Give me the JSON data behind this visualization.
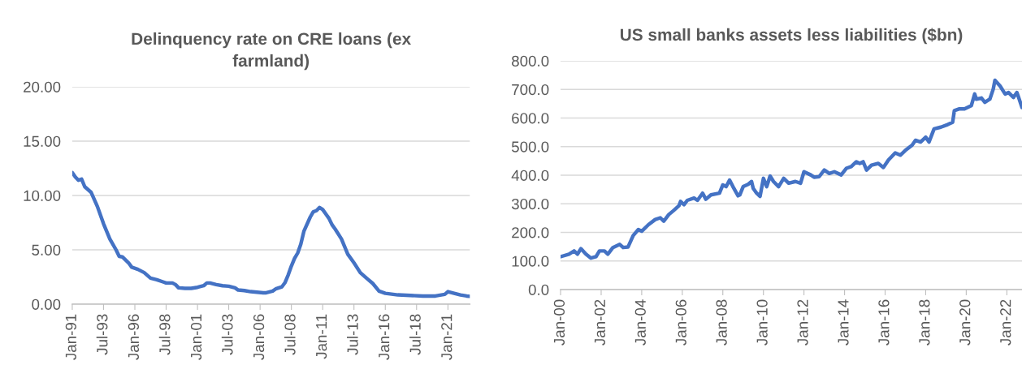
{
  "chart_data": [
    {
      "type": "line",
      "title": "Delinquency rate on CRE loans (ex farmland)",
      "x": [
        "1991-01",
        "1991-04",
        "1991-07",
        "1991-10",
        "1992-01",
        "1992-07",
        "1993-01",
        "1993-07",
        "1994-01",
        "1994-07",
        "1994-10",
        "1995-01",
        "1995-07",
        "1995-10",
        "1996-04",
        "1996-10",
        "1997-04",
        "1997-10",
        "1998-04",
        "1998-07",
        "1999-01",
        "1999-04",
        "1999-07",
        "2000-01",
        "2000-07",
        "2001-01",
        "2001-07",
        "2001-10",
        "2002-01",
        "2002-07",
        "2003-01",
        "2003-07",
        "2004-01",
        "2004-04",
        "2004-10",
        "2005-04",
        "2005-10",
        "2006-04",
        "2006-07",
        "2007-01",
        "2007-04",
        "2007-10",
        "2008-01",
        "2008-04",
        "2008-07",
        "2008-10",
        "2009-01",
        "2009-04",
        "2009-07",
        "2010-01",
        "2010-04",
        "2010-07",
        "2010-10",
        "2011-01",
        "2011-04",
        "2011-07",
        "2011-10",
        "2012-01",
        "2012-07",
        "2013-01",
        "2013-07",
        "2014-01",
        "2014-07",
        "2015-01",
        "2015-07",
        "2016-01",
        "2017-01",
        "2018-01",
        "2019-01",
        "2020-01",
        "2020-10",
        "2021-01",
        "2021-07",
        "2022-01",
        "2022-07",
        "2022-10"
      ],
      "series": [
        {
          "color": "#4472c4",
          "values": [
            12.1,
            11.7,
            11.4,
            11.5,
            10.8,
            10.3,
            9.0,
            7.4,
            6.0,
            5.0,
            4.4,
            4.35,
            3.8,
            3.4,
            3.2,
            2.9,
            2.4,
            2.25,
            2.05,
            1.95,
            1.95,
            1.8,
            1.5,
            1.45,
            1.45,
            1.55,
            1.7,
            1.95,
            1.95,
            1.8,
            1.7,
            1.65,
            1.5,
            1.3,
            1.25,
            1.15,
            1.1,
            1.05,
            1.05,
            1.2,
            1.4,
            1.6,
            2.0,
            2.7,
            3.5,
            4.2,
            4.7,
            5.5,
            6.7,
            8.0,
            8.5,
            8.6,
            8.9,
            8.7,
            8.3,
            7.9,
            7.3,
            6.9,
            6.0,
            4.6,
            3.8,
            2.9,
            2.4,
            1.9,
            1.2,
            1.0,
            0.85,
            0.8,
            0.75,
            0.75,
            0.9,
            1.15,
            1.0,
            0.85,
            0.75,
            0.72
          ]
        }
      ],
      "xlim": [
        "1991-01",
        "2022-10"
      ],
      "xticks": [
        {
          "value": "1991-01",
          "label": "Jan-91"
        },
        {
          "value": "1993-07",
          "label": "Jul-93"
        },
        {
          "value": "1996-01",
          "label": "Jan-96"
        },
        {
          "value": "1998-07",
          "label": "Jul-98"
        },
        {
          "value": "2001-01",
          "label": "Jan-01"
        },
        {
          "value": "2003-07",
          "label": "Jul-03"
        },
        {
          "value": "2006-01",
          "label": "Jan-06"
        },
        {
          "value": "2008-07",
          "label": "Jul-08"
        },
        {
          "value": "2011-01",
          "label": "Jan-11"
        },
        {
          "value": "2013-07",
          "label": "Jul-13"
        },
        {
          "value": "2016-01",
          "label": "Jan-16"
        },
        {
          "value": "2018-07",
          "label": "Jul-18"
        },
        {
          "value": "2021-01",
          "label": "Jan-21"
        }
      ],
      "ylim": [
        0,
        20
      ],
      "yticks": [
        {
          "value": 0,
          "label": "0.00"
        },
        {
          "value": 5,
          "label": "5.00"
        },
        {
          "value": 10,
          "label": "10.00"
        },
        {
          "value": 15,
          "label": "15.00"
        },
        {
          "value": 20,
          "label": "20.00"
        }
      ],
      "grid": "y",
      "marker": "none",
      "line_style": "solid"
    },
    {
      "type": "line",
      "title": "US small banks assets less liabilities ($bn)",
      "x": [
        "2000-01",
        "2000-06",
        "2000-09",
        "2000-11",
        "2001-01",
        "2001-04",
        "2001-07",
        "2001-10",
        "2001-12",
        "2002-03",
        "2002-05",
        "2002-08",
        "2002-12",
        "2003-02",
        "2003-05",
        "2003-08",
        "2003-11",
        "2004-01",
        "2004-05",
        "2004-09",
        "2004-12",
        "2005-02",
        "2005-05",
        "2005-08",
        "2005-11",
        "2005-12",
        "2006-02",
        "2006-04",
        "2006-08",
        "2006-10",
        "2007-01",
        "2007-03",
        "2007-06",
        "2007-11",
        "2008-01",
        "2008-03",
        "2008-05",
        "2008-07",
        "2008-10",
        "2008-11",
        "2009-01",
        "2009-04",
        "2009-06",
        "2009-07",
        "2009-09",
        "2009-11",
        "2010-01",
        "2010-03",
        "2010-05",
        "2010-07",
        "2010-10",
        "2011-01",
        "2011-04",
        "2011-08",
        "2011-11",
        "2012-01",
        "2012-05",
        "2012-07",
        "2012-10",
        "2013-01",
        "2013-04",
        "2013-07",
        "2013-11",
        "2014-02",
        "2014-05",
        "2014-08",
        "2014-10",
        "2014-12",
        "2015-02",
        "2015-05",
        "2015-09",
        "2015-12",
        "2016-03",
        "2016-07",
        "2016-10",
        "2017-01",
        "2017-05",
        "2017-07",
        "2017-10",
        "2018-01",
        "2018-03",
        "2018-06",
        "2018-10",
        "2019-02",
        "2019-05",
        "2019-06",
        "2019-09",
        "2019-12",
        "2020-04",
        "2020-06",
        "2020-07",
        "2020-10",
        "2020-12",
        "2021-03",
        "2021-05",
        "2021-06",
        "2021-09",
        "2021-12",
        "2022-02",
        "2022-05",
        "2022-07",
        "2022-08",
        "2022-10"
      ],
      "series": [
        {
          "color": "#4472c4",
          "values": [
            115,
            124,
            135,
            124,
            143,
            124,
            110,
            115,
            135,
            135,
            124,
            147,
            158,
            147,
            149,
            189,
            210,
            204,
            227,
            245,
            251,
            239,
            262,
            277,
            293,
            308,
            297,
            312,
            320,
            312,
            337,
            316,
            331,
            337,
            366,
            360,
            383,
            360,
            328,
            331,
            360,
            368,
            378,
            354,
            337,
            326,
            389,
            360,
            397,
            378,
            360,
            389,
            372,
            378,
            372,
            412,
            401,
            393,
            395,
            418,
            406,
            412,
            401,
            424,
            430,
            447,
            441,
            447,
            418,
            435,
            441,
            427,
            453,
            478,
            470,
            487,
            505,
            522,
            516,
            533,
            516,
            562,
            568,
            577,
            585,
            626,
            632,
            632,
            643,
            684,
            666,
            670,
            655,
            666,
            701,
            732,
            712,
            684,
            689,
            672,
            689,
            672,
            637
          ]
        }
      ],
      "xlim": [
        "2000-01",
        "2022-10"
      ],
      "xticks": [
        {
          "value": "2000-01",
          "label": "Jan-00"
        },
        {
          "value": "2002-01",
          "label": "Jan-02"
        },
        {
          "value": "2004-01",
          "label": "Jan-04"
        },
        {
          "value": "2006-01",
          "label": "Jan-06"
        },
        {
          "value": "2008-01",
          "label": "Jan-08"
        },
        {
          "value": "2010-01",
          "label": "Jan-10"
        },
        {
          "value": "2012-01",
          "label": "Jan-12"
        },
        {
          "value": "2014-01",
          "label": "Jan-14"
        },
        {
          "value": "2016-01",
          "label": "Jan-16"
        },
        {
          "value": "2018-01",
          "label": "Jan-18"
        },
        {
          "value": "2020-01",
          "label": "Jan-20"
        },
        {
          "value": "2022-01",
          "label": "Jan-22"
        }
      ],
      "ylim": [
        0,
        800
      ],
      "yticks": [
        {
          "value": 0,
          "label": "0.0"
        },
        {
          "value": 100,
          "label": "100.0"
        },
        {
          "value": 200,
          "label": "200.0"
        },
        {
          "value": 300,
          "label": "300.0"
        },
        {
          "value": 400,
          "label": "400.0"
        },
        {
          "value": 500,
          "label": "500.0"
        },
        {
          "value": 600,
          "label": "600.0"
        },
        {
          "value": 700,
          "label": "700.0"
        },
        {
          "value": 800,
          "label": "800.0"
        }
      ],
      "grid": "y",
      "marker": "none",
      "line_style": "solid"
    }
  ]
}
